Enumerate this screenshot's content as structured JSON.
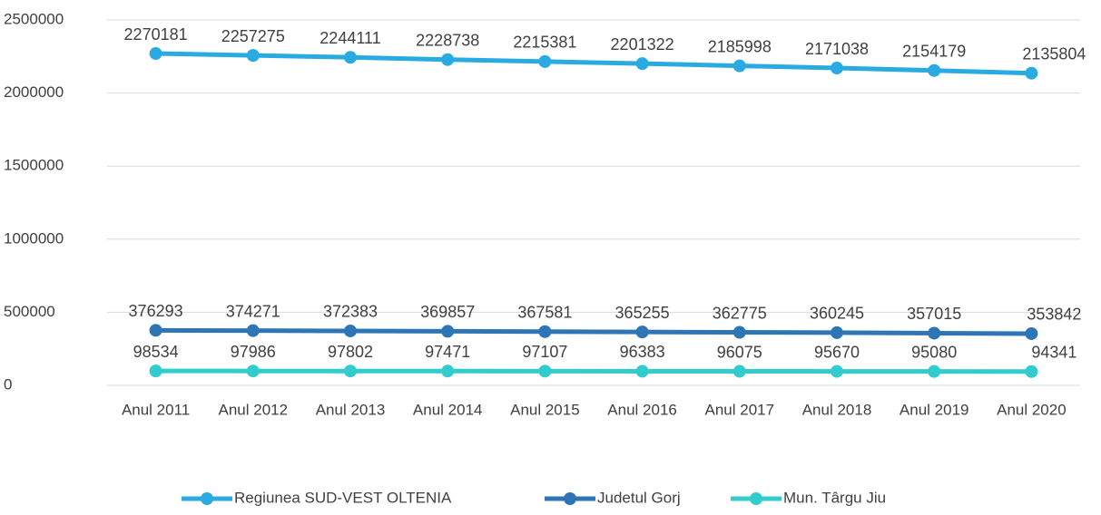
{
  "chart_data": {
    "type": "line",
    "categories": [
      "Anul 2011",
      "Anul 2012",
      "Anul 2013",
      "Anul 2014",
      "Anul 2015",
      "Anul 2016",
      "Anul 2017",
      "Anul 2018",
      "Anul 2019",
      "Anul 2020"
    ],
    "series": [
      {
        "name": "Regiunea SUD-VEST OLTENIA",
        "color": "#29abe2",
        "values": [
          2270181,
          2257275,
          2244111,
          2228738,
          2215381,
          2201322,
          2185998,
          2171038,
          2154179,
          2135804
        ]
      },
      {
        "name": "Judetul Gorj",
        "color": "#2e75b6",
        "values": [
          376293,
          374271,
          372383,
          369857,
          367581,
          365255,
          362775,
          360245,
          357015,
          353842
        ]
      },
      {
        "name": "Mun. Târgu Jiu",
        "color": "#33cccc",
        "values": [
          98534,
          97986,
          97802,
          97471,
          97107,
          96383,
          96075,
          95670,
          95080,
          94341
        ]
      }
    ],
    "ylim": [
      0,
      2500000
    ],
    "yticks": [
      0,
      500000,
      1000000,
      1500000,
      2000000,
      2500000
    ],
    "grid": true,
    "legend": "bottom"
  }
}
